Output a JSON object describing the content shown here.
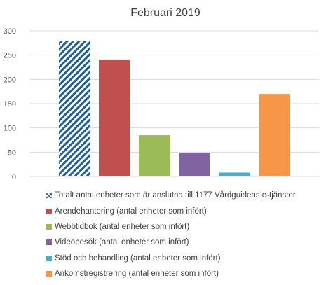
{
  "chart_data": {
    "type": "bar",
    "title": "Februari 2019",
    "xlabel": "",
    "ylabel": "",
    "ylim": [
      0,
      300
    ],
    "yticks": [
      0,
      50,
      100,
      150,
      200,
      250,
      300
    ],
    "grid": true,
    "legend_position": "bottom",
    "series": [
      {
        "name": "Totalt antal enheter som är anslutna till 1177 Vårdguidens e-tjänster",
        "value": 279,
        "color": "#1F5F99",
        "pattern": "diagonal-stripes"
      },
      {
        "name": "Ärendehantering (antal enheter som infört)",
        "value": 241,
        "color": "#C0504D"
      },
      {
        "name": "Webbtidbok (antal enheter som infört)",
        "value": 85,
        "color": "#9BBB59"
      },
      {
        "name": "Videobesök (antal enheter som infört)",
        "value": 49,
        "color": "#8064A2"
      },
      {
        "name": "Stöd och behandling (antal enheter som infört)",
        "value": 8,
        "color": "#4BACC6"
      },
      {
        "name": "Ankomstregistrering (antal enheter som infört)",
        "value": 170,
        "color": "#F79646"
      }
    ]
  }
}
